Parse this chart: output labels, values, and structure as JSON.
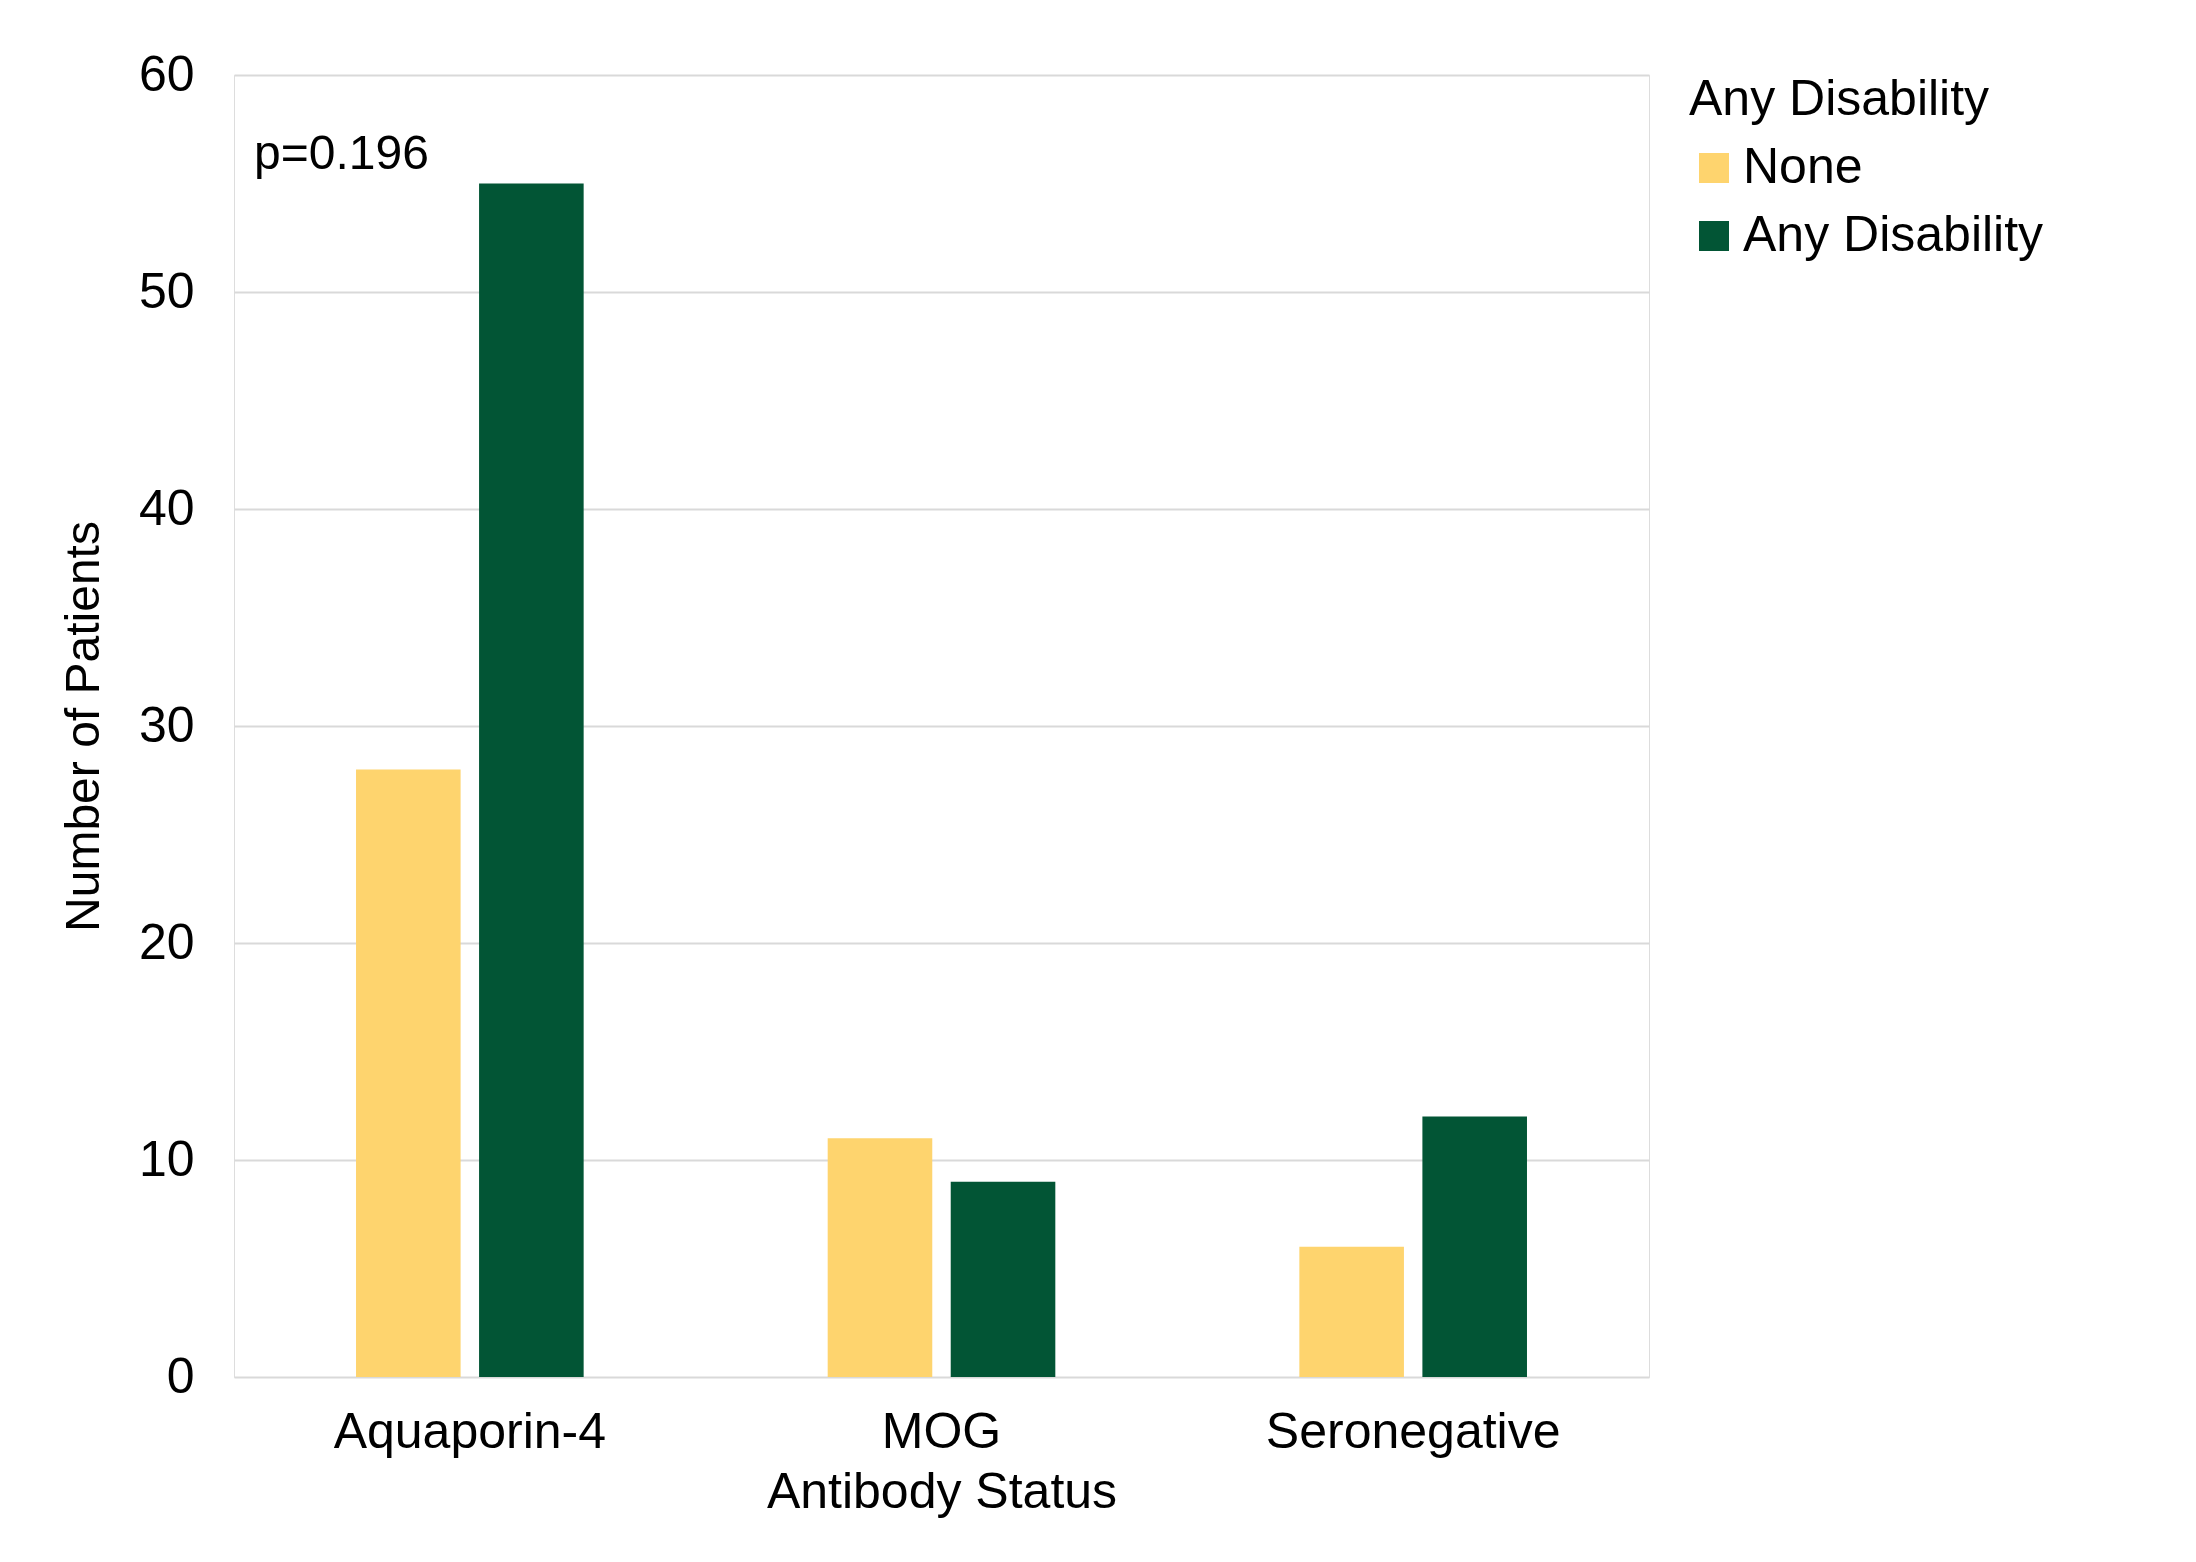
{
  "chart_data": {
    "type": "bar",
    "xlabel": "Antibody Status",
    "ylabel": "Number of Patients",
    "legend_title": "Any Disability",
    "categories": [
      "Aquaporin-4",
      "MOG",
      "Seronegative"
    ],
    "series": [
      {
        "name": "None",
        "color": "#fed46e",
        "values": [
          28,
          11,
          6
        ]
      },
      {
        "name": "Any Disability",
        "color": "#025535",
        "values": [
          55,
          9,
          12
        ]
      }
    ],
    "ylim": [
      0,
      60
    ],
    "yticks": [
      0,
      10,
      20,
      30,
      40,
      50,
      60
    ],
    "grid": "y",
    "legend": "right",
    "annotations": [
      "p=0.196"
    ]
  }
}
